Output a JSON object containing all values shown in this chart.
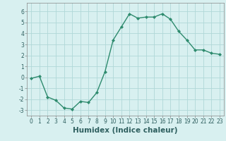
{
  "x": [
    0,
    1,
    2,
    3,
    4,
    5,
    6,
    7,
    8,
    9,
    10,
    11,
    12,
    13,
    14,
    15,
    16,
    17,
    18,
    19,
    20,
    21,
    22,
    23
  ],
  "y": [
    -0.1,
    0.1,
    -1.8,
    -2.1,
    -2.8,
    -2.9,
    -2.2,
    -2.3,
    -1.4,
    0.5,
    3.4,
    4.6,
    5.8,
    5.4,
    5.5,
    5.5,
    5.8,
    5.3,
    4.2,
    3.4,
    2.5,
    2.5,
    2.2,
    2.1
  ],
  "line_color": "#2e8b6e",
  "marker": "D",
  "marker_size": 2.0,
  "bg_color": "#d8f0f0",
  "grid_color": "#b0d8d8",
  "xlabel": "Humidex (Indice chaleur)",
  "xlim": [
    -0.5,
    23.5
  ],
  "ylim": [
    -3.5,
    6.8
  ],
  "yticks": [
    -3,
    -2,
    -1,
    0,
    1,
    2,
    3,
    4,
    5,
    6
  ],
  "xticks": [
    0,
    1,
    2,
    3,
    4,
    5,
    6,
    7,
    8,
    9,
    10,
    11,
    12,
    13,
    14,
    15,
    16,
    17,
    18,
    19,
    20,
    21,
    22,
    23
  ],
  "tick_fontsize": 5.5,
  "label_fontsize": 7.5,
  "line_width": 1.0
}
